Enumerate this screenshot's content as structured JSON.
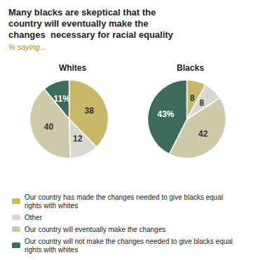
{
  "chart_data": {
    "type": "pie",
    "title": "Many blacks are skeptical that the\ncountry will eventually make the\nchanges  necessary for racial equality",
    "subtitle": "% saying...",
    "categories": [
      "Our country has made the changes needed to give blacks equal rights with whites",
      "Other",
      "Our country will eventually make the changes",
      "Our country will not make the changes needed to give blacks equal rights with whites"
    ],
    "legend": "bottom",
    "data_labels": true,
    "series": [
      {
        "name": "Whites",
        "colors": [
          "#c8b86a",
          "#d8d8d0",
          "#cec9a8",
          "#3d6b5c"
        ],
        "values": [
          38,
          12,
          40,
          11
        ],
        "value_labels": [
          "38",
          "12",
          "40",
          "11%"
        ]
      },
      {
        "name": "Blacks",
        "colors": [
          "#c8b86a",
          "#d8d8d0",
          "#cec9a8",
          "#3d6b5c"
        ],
        "values": [
          8,
          8,
          42,
          43
        ],
        "value_labels": [
          "8",
          "8",
          "42",
          "43%"
        ]
      }
    ]
  }
}
